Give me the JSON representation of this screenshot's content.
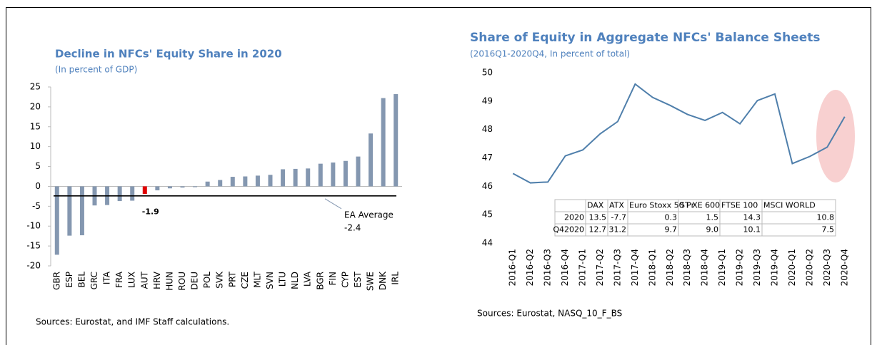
{
  "chart_data": [
    {
      "type": "bar",
      "title": "Decline in NFCs' Equity Share in 2020",
      "subtitle": "(In percent of GDP)",
      "categories": [
        "GBR",
        "ESP",
        "BEL",
        "GRC",
        "ITA",
        "FRA",
        "LUX",
        "AUT",
        "HRV",
        "HUN",
        "ROU",
        "DEU",
        "POL",
        "SVK",
        "PRT",
        "CZE",
        "MLT",
        "SVN",
        "LTU",
        "NLD",
        "LVA",
        "BGR",
        "FIN",
        "CYP",
        "EST",
        "SWE",
        "DNK",
        "IRL"
      ],
      "values": [
        -17.2,
        -12.4,
        -12.3,
        -4.8,
        -4.7,
        -3.7,
        -3.6,
        -1.9,
        -1.0,
        -0.5,
        -0.3,
        -0.2,
        1.2,
        1.6,
        2.4,
        2.5,
        2.7,
        2.9,
        4.3,
        4.4,
        4.5,
        5.7,
        6.0,
        6.4,
        7.5,
        13.3,
        22.2,
        23.2
      ],
      "color": "#8497b0",
      "highlight": "AUT",
      "highlight_color": "#e00000",
      "average_line": {
        "name": "EA Average",
        "value": -2.4
      },
      "ylim": [
        -20,
        25
      ],
      "yticks": [
        -20,
        -15,
        -10,
        -5,
        0,
        5,
        10,
        15,
        20,
        25
      ],
      "source": "Sources: Eurostat, and IMF Staff calculations."
    },
    {
      "type": "line",
      "title": "Share of Equity in Aggregate NFCs' Balance Sheets",
      "subtitle": "(2016Q1-2020Q4, In percent of total)",
      "categories": [
        "2016-Q1",
        "2016-Q2",
        "2016-Q3",
        "2016-Q4",
        "2017-Q1",
        "2017-Q2",
        "2017-Q3",
        "2017-Q4",
        "2018-Q1",
        "2018-Q2",
        "2018-Q3",
        "2018-Q4",
        "2019-Q1",
        "2019-Q2",
        "2019-Q3",
        "2019-Q4",
        "2020-Q1",
        "2020-Q2",
        "2020-Q3",
        "2020-Q4"
      ],
      "values": [
        46.45,
        46.12,
        46.15,
        47.07,
        47.28,
        47.85,
        48.28,
        49.6,
        49.13,
        48.85,
        48.53,
        48.32,
        48.6,
        48.2,
        49.02,
        49.25,
        46.8,
        47.05,
        47.38,
        48.45
      ],
      "color": "#4f7fab",
      "ylim": [
        44,
        50
      ],
      "yticks": [
        44,
        45,
        46,
        47,
        48,
        49,
        50
      ],
      "table": {
        "columns": [
          "DAX",
          "ATX",
          "Euro Stoxx 50 Pr",
          "ST XE 600",
          "FTSE 100",
          "MSCI WORLD"
        ],
        "rows": [
          {
            "label": "2020",
            "cells": [
              "13.5",
              "-7.7",
              "0.3",
              "1.5",
              "14.3",
              "10.8"
            ]
          },
          {
            "label": "Q42020",
            "cells": [
              "12.7",
              "31.2",
              "9.7",
              "9.0",
              "10.1",
              "7.5"
            ]
          }
        ]
      },
      "source": "Sources: Eurostat, NASQ_10_F_BS"
    }
  ]
}
